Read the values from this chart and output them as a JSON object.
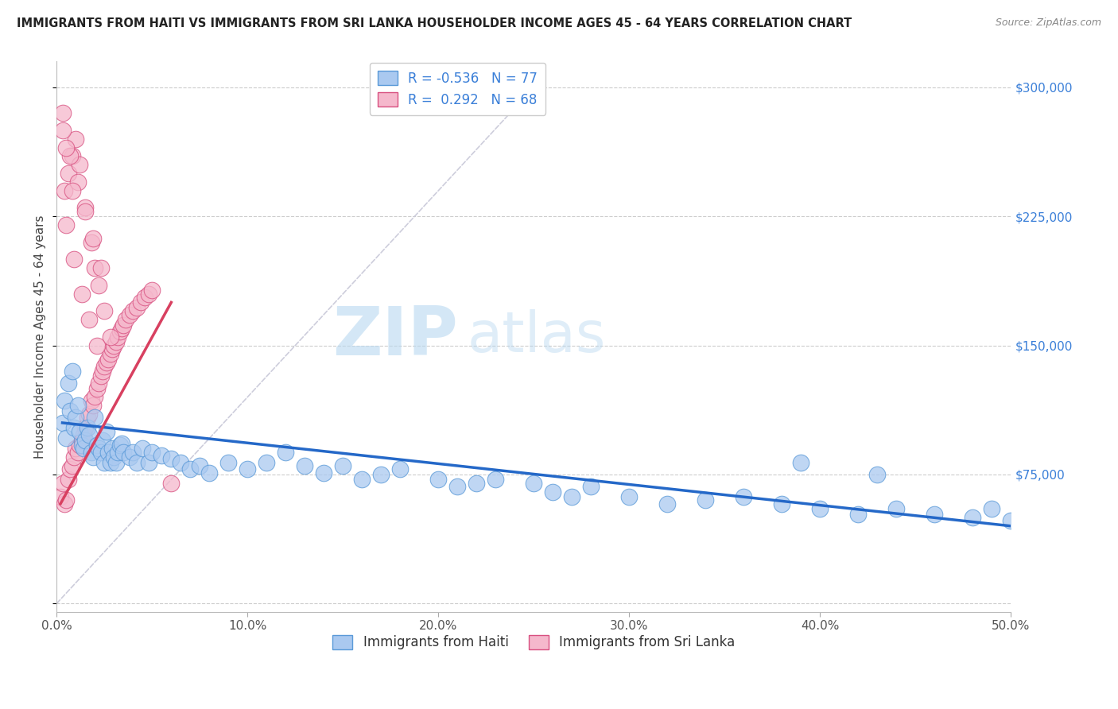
{
  "title": "IMMIGRANTS FROM HAITI VS IMMIGRANTS FROM SRI LANKA HOUSEHOLDER INCOME AGES 45 - 64 YEARS CORRELATION CHART",
  "source": "Source: ZipAtlas.com",
  "ylabel": "Householder Income Ages 45 - 64 years",
  "xlim": [
    0.0,
    0.5
  ],
  "ylim": [
    -5000,
    315000
  ],
  "yticks": [
    0,
    75000,
    150000,
    225000,
    300000
  ],
  "ytick_labels": [
    "",
    "$75,000",
    "$150,000",
    "$225,000",
    "$300,000"
  ],
  "xtick_vals": [
    0.0,
    0.1,
    0.2,
    0.3,
    0.4,
    0.5
  ],
  "xtick_labels": [
    "0.0%",
    "10.0%",
    "20.0%",
    "30.0%",
    "40.0%",
    "50.0%"
  ],
  "watermark_zip": "ZIP",
  "watermark_atlas": "atlas",
  "legend_r1": "R = -0.536",
  "legend_n1": "N = 77",
  "legend_r2": "R =  0.292",
  "legend_n2": "N = 68",
  "haiti_color": "#aac9f0",
  "haiti_edge": "#5a9ad8",
  "srilanka_color": "#f5b8cc",
  "srilanka_edge": "#d85080",
  "haiti_line_color": "#2468c8",
  "srilanka_line_color": "#d84060",
  "ref_line_color": "#c8c8d8",
  "background_color": "#ffffff",
  "title_fontsize": 10.5,
  "axis_label_fontsize": 11,
  "tick_fontsize": 11,
  "legend_fontsize": 12,
  "haiti_scatter_x": [
    0.003,
    0.004,
    0.005,
    0.006,
    0.007,
    0.008,
    0.009,
    0.01,
    0.011,
    0.012,
    0.013,
    0.014,
    0.015,
    0.016,
    0.017,
    0.018,
    0.019,
    0.02,
    0.021,
    0.022,
    0.023,
    0.024,
    0.025,
    0.026,
    0.027,
    0.028,
    0.029,
    0.03,
    0.031,
    0.032,
    0.033,
    0.034,
    0.035,
    0.038,
    0.04,
    0.042,
    0.045,
    0.048,
    0.05,
    0.055,
    0.06,
    0.065,
    0.07,
    0.075,
    0.08,
    0.09,
    0.1,
    0.11,
    0.12,
    0.13,
    0.14,
    0.15,
    0.16,
    0.17,
    0.18,
    0.2,
    0.21,
    0.22,
    0.23,
    0.25,
    0.26,
    0.27,
    0.28,
    0.3,
    0.32,
    0.34,
    0.36,
    0.38,
    0.4,
    0.42,
    0.44,
    0.46,
    0.48,
    0.49,
    0.5,
    0.43,
    0.39
  ],
  "haiti_scatter_y": [
    105000,
    118000,
    96000,
    128000,
    112000,
    135000,
    102000,
    108000,
    115000,
    100000,
    92000,
    90000,
    95000,
    102000,
    98000,
    88000,
    85000,
    108000,
    92000,
    90000,
    88000,
    95000,
    82000,
    100000,
    88000,
    82000,
    90000,
    85000,
    82000,
    88000,
    92000,
    93000,
    88000,
    85000,
    88000,
    82000,
    90000,
    82000,
    88000,
    86000,
    84000,
    82000,
    78000,
    80000,
    76000,
    82000,
    78000,
    82000,
    88000,
    80000,
    76000,
    80000,
    72000,
    75000,
    78000,
    72000,
    68000,
    70000,
    72000,
    70000,
    65000,
    62000,
    68000,
    62000,
    58000,
    60000,
    62000,
    58000,
    55000,
    52000,
    55000,
    52000,
    50000,
    55000,
    48000,
    75000,
    82000
  ],
  "srilanka_scatter_x": [
    0.002,
    0.003,
    0.004,
    0.005,
    0.006,
    0.007,
    0.008,
    0.009,
    0.01,
    0.011,
    0.012,
    0.013,
    0.014,
    0.015,
    0.016,
    0.017,
    0.018,
    0.019,
    0.02,
    0.021,
    0.022,
    0.023,
    0.024,
    0.025,
    0.026,
    0.027,
    0.028,
    0.029,
    0.03,
    0.031,
    0.032,
    0.033,
    0.034,
    0.035,
    0.036,
    0.038,
    0.04,
    0.042,
    0.044,
    0.046,
    0.048,
    0.05,
    0.004,
    0.006,
    0.008,
    0.01,
    0.012,
    0.015,
    0.018,
    0.02,
    0.022,
    0.025,
    0.028,
    0.005,
    0.009,
    0.013,
    0.017,
    0.021,
    0.003,
    0.007,
    0.011,
    0.015,
    0.019,
    0.023,
    0.003,
    0.005,
    0.008,
    0.06
  ],
  "srilanka_scatter_y": [
    62000,
    70000,
    58000,
    60000,
    72000,
    78000,
    80000,
    85000,
    90000,
    88000,
    92000,
    95000,
    98000,
    102000,
    108000,
    110000,
    118000,
    115000,
    120000,
    125000,
    128000,
    132000,
    135000,
    138000,
    140000,
    142000,
    145000,
    148000,
    150000,
    152000,
    155000,
    158000,
    160000,
    162000,
    165000,
    168000,
    170000,
    172000,
    175000,
    178000,
    180000,
    182000,
    240000,
    250000,
    260000,
    270000,
    255000,
    230000,
    210000,
    195000,
    185000,
    170000,
    155000,
    220000,
    200000,
    180000,
    165000,
    150000,
    275000,
    260000,
    245000,
    228000,
    212000,
    195000,
    285000,
    265000,
    240000,
    70000
  ],
  "haiti_line_x": [
    0.003,
    0.5
  ],
  "haiti_line_y": [
    105000,
    45000
  ],
  "srilanka_line_x": [
    0.002,
    0.06
  ],
  "srilanka_line_y": [
    58000,
    175000
  ]
}
